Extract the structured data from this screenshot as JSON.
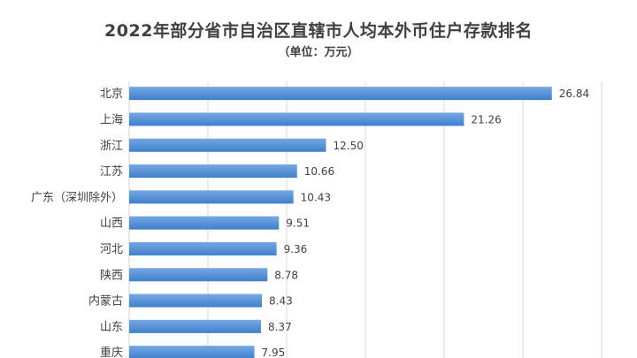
{
  "chart_data": {
    "type": "bar",
    "orientation": "horizontal",
    "title": "2022年部分省市自治区直辖市人均本外币住户存款排名",
    "subtitle": "（单位：万元）",
    "categories": [
      "北京",
      "上海",
      "浙江",
      "江苏",
      "广东（深圳除外）",
      "山西",
      "河北",
      "陕西",
      "内蒙古",
      "山东",
      "重庆"
    ],
    "values": [
      26.84,
      21.26,
      12.5,
      10.66,
      10.43,
      9.51,
      9.36,
      8.78,
      8.43,
      8.37,
      7.95
    ],
    "value_labels": [
      "26.84",
      "21.26",
      "12.50",
      "10.66",
      "10.43",
      "9.51",
      "9.36",
      "8.78",
      "8.43",
      "8.37",
      "7.95"
    ],
    "xlim": [
      0,
      30
    ],
    "grid": true,
    "bar_color": "#3f7fcb",
    "bar_color_light": "#76a8e2",
    "grid_color": "#d9d9d9"
  }
}
